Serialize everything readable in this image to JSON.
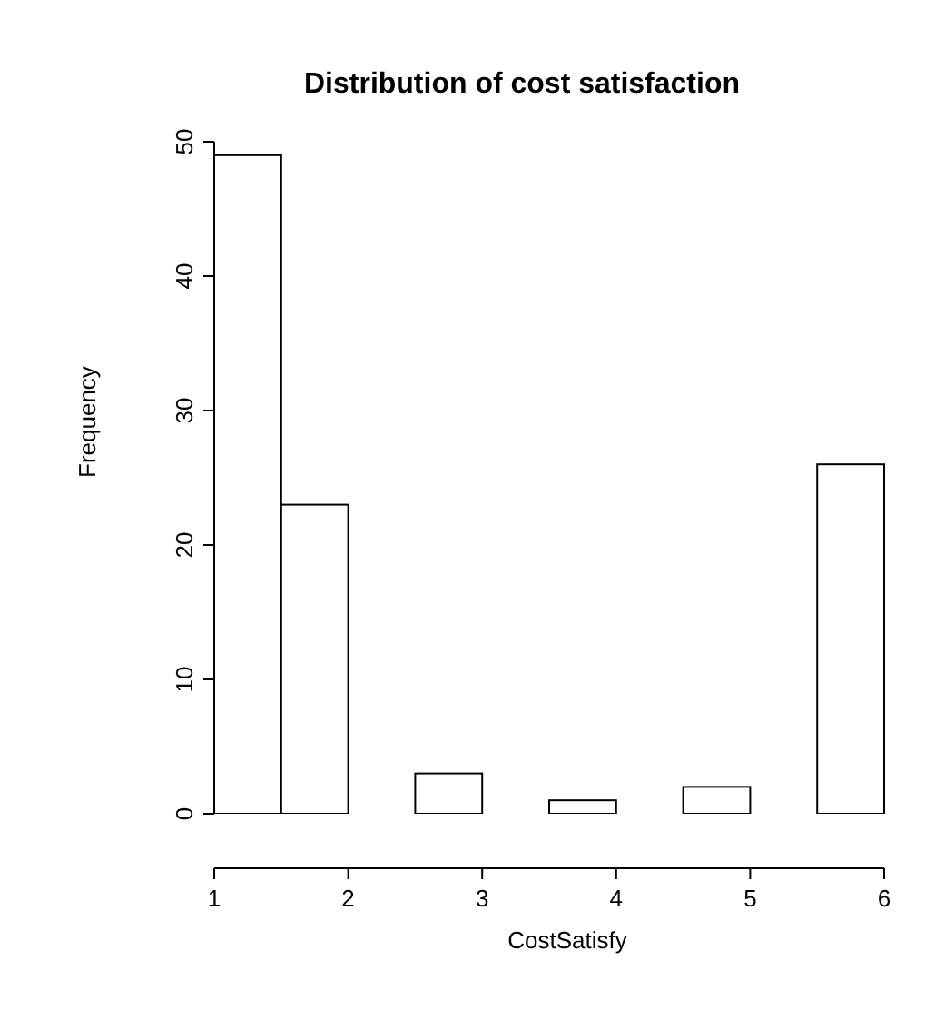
{
  "chart_data": {
    "type": "histogram",
    "title": "Distribution of cost satisfaction",
    "xlabel": "CostSatisfy",
    "ylabel": "Frequency",
    "bins": [
      1,
      1.5,
      2,
      2.5,
      3,
      3.5,
      4,
      4.5,
      5,
      5.5,
      6
    ],
    "values": [
      49,
      23,
      0,
      3,
      0,
      1,
      0,
      2,
      0,
      26
    ],
    "color": "#ffffff",
    "xlim": [
      1,
      6
    ],
    "xticks": [
      1,
      2,
      3,
      4,
      5,
      6
    ],
    "ylim": [
      0,
      50
    ],
    "yticks": [
      0,
      10,
      20,
      30,
      40,
      50
    ],
    "grid": false,
    "legend": false
  }
}
